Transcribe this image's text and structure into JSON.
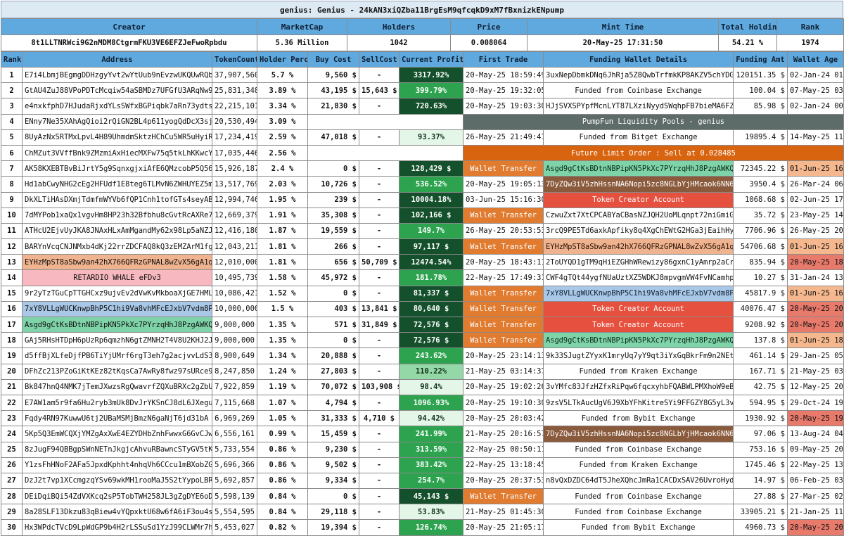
{
  "title": "genius: Genius - 24kAN3xiQZba11BrgEsM9qfcqkD9xM7fBxnizkENpump",
  "summary": {
    "headers": [
      "Creator",
      "MarketCap",
      "Holders",
      "Price",
      "Mint Time",
      "Total Holding",
      "Rank"
    ],
    "values": [
      "8t1LLTNRWci9G2nMDM8CtgrmFKU3VE6EFZJeFwoRpbdu",
      "5.36 Million",
      "1042",
      "0.008064",
      "20-May-25 17:31:50",
      "54.21 %",
      "1974"
    ]
  },
  "columns": [
    "Rank",
    "Address",
    "TokenCount",
    "Holder Perc",
    "Buy Cost",
    "SellCost",
    "Current Profit",
    "First Trade",
    "Funding Wallet Details",
    "Funding Amt",
    "Wallet Age"
  ],
  "colors": {
    "header_blue": "#5fa9de",
    "profit_dark": "#14502c",
    "profit_mid": "#2ea34f",
    "profit_light": "#93d8a6",
    "wallet_transfer": "#e07b30",
    "token_creator": "#e6503e",
    "pool_gray": "#5d6b69",
    "limit_orange": "#d9640f",
    "age_red": "#e87a6c",
    "age_orange": "#f5b88e"
  },
  "rows": [
    {
      "rank": "1",
      "address": "E7i4LbmjBEgmgDDHzgyYvt2wYtUub9nEvzwUKQUwRQbr",
      "addr_style": "",
      "token_count": "37,907,560",
      "holder_perc": "5.7 %",
      "buy_cost": "9,560 $",
      "sell_cost": "-",
      "profit": "3317.92%",
      "profit_level": "p-dark",
      "first_trade": "20-May-25 18:59:49",
      "funding": "3uxNepDbmkDNq6JhRja5Z8QwbTrfmkKP8AKZV5chYDGG",
      "funding_style": "f-plain",
      "funding_amt": "120151.35 $",
      "wallet_age": "02-Jan-24 01:17",
      "age_style": ""
    },
    {
      "rank": "2",
      "address": "GtAU4ZuJ88VPoPDTcMcqiw54aSBMDz7UFGfU3ARqNw96",
      "addr_style": "",
      "token_count": "25,831,348",
      "holder_perc": "3.89 %",
      "buy_cost": "43,195 $",
      "sell_cost": "15,643 $",
      "profit": "399.79%",
      "profit_level": "p-mid",
      "first_trade": "20-May-25 19:32:05",
      "funding": "Funded from Coinbase Exchange",
      "funding_style": "f-plain",
      "funding_amt": "100.04 $",
      "wallet_age": "07-May-25 03:04",
      "age_style": ""
    },
    {
      "rank": "3",
      "address": "e4nxkfphD7HJudaRjxdYLsSWfxBGPiqbk7aRn73ydts",
      "addr_style": "",
      "token_count": "22,215,101",
      "holder_perc": "3.34 %",
      "buy_cost": "21,830 $",
      "sell_cost": "-",
      "profit": "720.63%",
      "profit_level": "p-dark",
      "first_trade": "20-May-25 19:03:30",
      "funding": "HJjSVXSPYpfMcnLYT87LXziNyydSWqhpFB7bieMA6FZS",
      "funding_style": "f-plain",
      "funding_amt": "85.98 $",
      "wallet_age": "02-Jan-24 00:30",
      "age_style": ""
    },
    {
      "rank": "4",
      "address": "ENny7Ne35XAhAgQioi2rQiGN2BL4p611yogQdDcX3sjH",
      "addr_style": "",
      "token_count": "20,530,494",
      "holder_perc": "3.09 %",
      "buy_cost": "",
      "sell_cost": "",
      "profit": "",
      "profit_level": "p-none",
      "first_trade": "",
      "funding": "PumpFun Liquidity Pools - genius",
      "funding_style": "f-pool",
      "funding_amt": "",
      "wallet_age": "",
      "age_style": "",
      "span": "pool"
    },
    {
      "rank": "5",
      "address": "8UyAzNxSRTMxLpvL4H89UhmdmSktzHChCu5WR5uHyiRB",
      "addr_style": "",
      "token_count": "17,234,419",
      "holder_perc": "2.59 %",
      "buy_cost": "47,018 $",
      "sell_cost": "-",
      "profit": "93.37%",
      "profit_level": "p-pale",
      "first_trade": "26-May-25 21:49:47",
      "funding": "Funded from Bitget Exchange",
      "funding_style": "f-plain",
      "funding_amt": "19895.4 $",
      "wallet_age": "14-May-25 11:22",
      "age_style": ""
    },
    {
      "rank": "6",
      "address": "ChMZut3VVffBnk9ZMzmiAxHiecMXFw75q5tkLhKKwcYz",
      "addr_style": "",
      "token_count": "17,035,446",
      "holder_perc": "2.56 %",
      "buy_cost": "",
      "sell_cost": "",
      "profit": "",
      "profit_level": "p-none",
      "first_trade": "",
      "funding": "Future Limit Order : Sell at 0.028485",
      "funding_style": "f-limit",
      "funding_amt": "",
      "wallet_age": "",
      "age_style": "",
      "span": "limit"
    },
    {
      "rank": "7",
      "address": "AK58KXEBTBvBiJrtY5g9SqnxgjxiAfE6QMzcobP5Q56U",
      "addr_style": "",
      "token_count": "15,926,187",
      "holder_perc": "2.4 %",
      "buy_cost": "0 $",
      "sell_cost": "-",
      "profit": "128,429 $",
      "profit_level": "p-dark",
      "first_trade": "Wallet Transfer",
      "first_style": "f-transfer",
      "funding": "Asgd9gCtKsBDtnNBPipKN5PkXc7PYrzqHhJ8PzgAWKQJ",
      "funding_style": "f-green",
      "funding_amt": "72345.22 $",
      "wallet_age": "01-Jun-25 16:14",
      "age_style": "g-orange"
    },
    {
      "rank": "8",
      "address": "Hd1abCwyNHG2cEg2HFUdf1E8teg6TLMvN6ZWHUYEZ5m",
      "addr_style": "",
      "token_count": "13,517,769",
      "holder_perc": "2.03 %",
      "buy_cost": "10,726 $",
      "sell_cost": "-",
      "profit": "536.52%",
      "profit_level": "p-mid",
      "first_trade": "20-May-25 19:05:13",
      "funding": "7DyZQw3iV5zhHssnNA6Nopi5zc8NGLbYjHMcaok6NN66",
      "funding_style": "f-brown",
      "funding_amt": "3950.4 $",
      "wallet_age": "26-Mar-24 06:51",
      "age_style": ""
    },
    {
      "rank": "9",
      "address": "DkXLTiHAsDXmjTdmfmWYVb6fQP1Cnh1tofGTs4seyABq",
      "addr_style": "",
      "token_count": "12,994,746",
      "holder_perc": "1.95 %",
      "buy_cost": "239 $",
      "sell_cost": "-",
      "profit": "10004.18%",
      "profit_level": "p-dark",
      "first_trade": "03-Jun-25 15:16:30",
      "funding": "Token Creator Account",
      "funding_style": "f-creator",
      "funding_amt": "1068.68 $",
      "wallet_age": "02-Jun-25 17:20",
      "age_style": ""
    },
    {
      "rank": "10",
      "address": "7dMYPob1xaQx1vgvHm8HP23h32Bfbhu8cGvtRcAXRe7D",
      "addr_style": "",
      "token_count": "12,669,379",
      "holder_perc": "1.91 %",
      "buy_cost": "35,308 $",
      "sell_cost": "-",
      "profit": "102,166 $",
      "profit_level": "p-dark",
      "first_trade": "Wallet Transfer",
      "first_style": "f-transfer",
      "funding": "CzwuZxt7XtCPCABYaCBasNZJQH2UoMLqnpt72niGmiGN",
      "funding_style": "f-plain",
      "funding_amt": "35.72 $",
      "wallet_age": "23-May-25 14:45",
      "age_style": ""
    },
    {
      "rank": "11",
      "address": "ATHcU2EjvUyJKA8JNAxHLxAmMgandMy62x98Lp5aNZJ7",
      "addr_style": "",
      "token_count": "12,416,180",
      "holder_perc": "1.87 %",
      "buy_cost": "19,559 $",
      "sell_cost": "-",
      "profit": "149.7%",
      "profit_level": "p-mid",
      "first_trade": "26-May-25 20:53:53",
      "funding": "3rcQ9PE5Td6axkApfiky8q4XgChEWtG2HGa3jEaihHy9",
      "funding_style": "f-plain",
      "funding_amt": "7706.96 $",
      "wallet_age": "26-May-25 20:45",
      "age_style": ""
    },
    {
      "rank": "12",
      "address": "BARYnVcqCNJNMxb4dKj22rrZDCFAQ8kQ3zEMZArM1fg1",
      "addr_style": "",
      "token_count": "12,043,211",
      "holder_perc": "1.81 %",
      "buy_cost": "266 $",
      "sell_cost": "-",
      "profit": "97,117 $",
      "profit_level": "p-dark",
      "first_trade": "Wallet Transfer",
      "first_style": "f-transfer",
      "funding": "EYHzMpST8aSbw9an42hX766QFRzGPNAL8wZvX56gA1qd",
      "funding_style": "f-salmon",
      "funding_amt": "54706.68 $",
      "wallet_age": "01-Jun-25 16:13",
      "age_style": "g-orange"
    },
    {
      "rank": "13",
      "address": "EYHzMpST8aSbw9an42hX766QFRzGPNAL8wZvX56gA1qd",
      "addr_style": "a-salmon",
      "token_count": "12,010,000",
      "holder_perc": "1.81 %",
      "buy_cost": "656 $",
      "sell_cost": "50,709 $",
      "profit": "12474.54%",
      "profit_level": "p-dark",
      "first_trade": "20-May-25 18:43:11",
      "funding": "2ToUYQD1gTM9qHiEZGHhWRewizy86gxnC1yAmrp2aCrv",
      "funding_style": "f-plain",
      "funding_amt": "835.94 $",
      "wallet_age": "20-May-25 18:41",
      "age_style": "g-red"
    },
    {
      "rank": "14",
      "address": "RETARDIO WHALE eFDv3",
      "addr_style": "a-pink",
      "token_count": "10,495,739",
      "holder_perc": "1.58 %",
      "buy_cost": "45,972 $",
      "sell_cost": "-",
      "profit": "181.78%",
      "profit_level": "p-mid",
      "first_trade": "22-May-25 17:49:31",
      "funding": "CWF4gTQt44ygfNUaUztXZ5WDKJ8mpvgmVW4FvNCamhp6",
      "funding_style": "f-plain",
      "funding_amt": "10.27 $",
      "wallet_age": "31-Jan-24 13:16",
      "age_style": ""
    },
    {
      "rank": "15",
      "address": "9r2yTzTGuCpTTGHCxz9ujvEv2dVwKvMkboaXjGE7HMLD",
      "addr_style": "",
      "token_count": "10,086,421",
      "holder_perc": "1.52 %",
      "buy_cost": "0 $",
      "sell_cost": "-",
      "profit": "81,337 $",
      "profit_level": "p-dark",
      "first_trade": "Wallet Transfer",
      "first_style": "f-transfer",
      "funding": "7xY8VLLgWUCKnwpBhP5C1hi9Va8vhMFcEJxbV7vdm8PL",
      "funding_style": "f-blue",
      "funding_amt": "45817.9 $",
      "wallet_age": "01-Jun-25 16:16",
      "age_style": "g-orange"
    },
    {
      "rank": "16",
      "address": "7xY8VLLgWUCKnwpBhP5C1hi9Va8vhMFcEJxbV7vdm8PL",
      "addr_style": "a-blue",
      "token_count": "10,000,000",
      "holder_perc": "1.5 %",
      "buy_cost": "403 $",
      "sell_cost": "13,841 $",
      "profit": "80,640 $",
      "profit_level": "p-dark",
      "first_trade": "Wallet Transfer",
      "first_style": "f-transfer",
      "funding": "Token Creator Account",
      "funding_style": "f-creator",
      "funding_amt": "40076.47 $",
      "wallet_age": "20-May-25 20:51",
      "age_style": "g-red"
    },
    {
      "rank": "17",
      "address": "Asgd9gCtKsBDtnNBPipKN5PkXc7PYrzqHhJ8PzgAWKQJ",
      "addr_style": "a-green",
      "token_count": "9,000,000",
      "holder_perc": "1.35 %",
      "buy_cost": "571 $",
      "sell_cost": "31,849 $",
      "profit": "72,576 $",
      "profit_level": "p-dark",
      "first_trade": "Wallet Transfer",
      "first_style": "f-transfer",
      "funding": "Token Creator Account",
      "funding_style": "f-creator",
      "funding_amt": "9208.92 $",
      "wallet_age": "20-May-25 20:06",
      "age_style": "g-red"
    },
    {
      "rank": "18",
      "address": "GAj5RHsHTDpH6pUzRp6qmzhN6gtZMNH2T4V8U2KHJ2Jf",
      "addr_style": "",
      "token_count": "9,000,000",
      "holder_perc": "1.35 %",
      "buy_cost": "0 $",
      "sell_cost": "-",
      "profit": "72,576 $",
      "profit_level": "p-dark",
      "first_trade": "Wallet Transfer",
      "first_style": "f-transfer",
      "funding": "Asgd9gCtKsBDtnNBPipKN5PkXc7PYrzqHhJ8PzgAWKQJ",
      "funding_style": "f-green",
      "funding_amt": "137.8 $",
      "wallet_age": "01-Jun-25 18:42",
      "age_style": "g-orange"
    },
    {
      "rank": "19",
      "address": "d5ffBjXLfeDjfPB6TiYjUMrf6rgT3eh7g2acjvvLdS3",
      "addr_style": "",
      "token_count": "8,900,649",
      "holder_perc": "1.34 %",
      "buy_cost": "20,888 $",
      "sell_cost": "-",
      "profit": "243.62%",
      "profit_level": "p-mid",
      "first_trade": "20-May-25 23:14:13",
      "funding": "9k33SJugtZYyxK1mryUq7yY9qt3iYxGqBkrFm9n2NEtk",
      "funding_style": "f-plain",
      "funding_amt": "461.14 $",
      "wallet_age": "29-Jan-25 05:41",
      "age_style": ""
    },
    {
      "rank": "20",
      "address": "DFhZc213PZoGiKtKEz82tKqsCa7AwRy8fwz97sURce9d",
      "addr_style": "",
      "token_count": "8,247,850",
      "holder_perc": "1.24 %",
      "buy_cost": "27,803 $",
      "sell_cost": "-",
      "profit": "110.22%",
      "profit_level": "p-light",
      "first_trade": "21-May-25 03:14:37",
      "funding": "Funded from Kraken Exchange",
      "funding_style": "f-plain",
      "funding_amt": "167.71 $",
      "wallet_age": "21-May-25 03:10",
      "age_style": ""
    },
    {
      "rank": "21",
      "address": "Bk847hnQ4NMK7jTemJXwzsRgQwavrfZQXuBRXc2gZbUs",
      "addr_style": "",
      "token_count": "7,922,859",
      "holder_perc": "1.19 %",
      "buy_cost": "70,072 $",
      "sell_cost": "103,908 $",
      "profit": "98.4%",
      "profit_level": "p-pale",
      "first_trade": "20-May-25 19:02:26",
      "funding": "3vYMfc83JfzHZfxRiPqw6fqcxyhbFQABWLPMXhoW9eB8",
      "funding_style": "f-plain",
      "funding_amt": "42.75 $",
      "wallet_age": "12-May-25 20:57",
      "age_style": ""
    },
    {
      "rank": "22",
      "address": "E7AW1am5r9fa6Hu2ryb3mUk8DvJrYKSnCJ8dL6JXeguY",
      "addr_style": "",
      "token_count": "7,115,668",
      "holder_perc": "1.07 %",
      "buy_cost": "4,794 $",
      "sell_cost": "-",
      "profit": "1096.93%",
      "profit_level": "p-mid",
      "first_trade": "20-May-25 19:10:30",
      "funding": "9zsV5LTkAucUgV6J9XbYFhKitreSYi9FFGZY8G5yL3vV",
      "funding_style": "f-plain",
      "funding_amt": "594.95 $",
      "wallet_age": "29-Oct-24 19:23",
      "age_style": ""
    },
    {
      "rank": "23",
      "address": "Fqdy4RN97KuwwU6tj2UBaMSMjBmzN6gaNjT6jd31bA",
      "addr_style": "",
      "token_count": "6,969,269",
      "holder_perc": "1.05 %",
      "buy_cost": "31,333 $",
      "sell_cost": "4,710 $",
      "profit": "94.42%",
      "profit_level": "p-pale",
      "first_trade": "20-May-25 20:03:42",
      "funding": "Funded from Bybit Exchange",
      "funding_style": "f-plain",
      "funding_amt": "1930.92 $",
      "wallet_age": "20-May-25 19:44",
      "age_style": "g-red"
    },
    {
      "rank": "24",
      "address": "5Kp5Q3EmWCQXjYMZgAxXwE4EZYDHbZnhFwwxG6GvCJwe",
      "addr_style": "",
      "token_count": "6,556,161",
      "holder_perc": "0.99 %",
      "buy_cost": "15,459 $",
      "sell_cost": "-",
      "profit": "241.99%",
      "profit_level": "p-mid",
      "first_trade": "21-May-25 20:16:57",
      "funding": "7DyZQw3iV5zhHssnNA6Nopi5zc8NGLbYjHMcaok6NN66",
      "funding_style": "f-brown",
      "funding_amt": "97.06 $",
      "wallet_age": "13-Aug-24 04:25",
      "age_style": ""
    },
    {
      "rank": "25",
      "address": "8zJugF94QBBgpSWnNETnJkgjcAhvuRBawncSTyGV5tKS",
      "addr_style": "",
      "token_count": "5,733,554",
      "holder_perc": "0.86 %",
      "buy_cost": "9,230 $",
      "sell_cost": "-",
      "profit": "313.59%",
      "profit_level": "p-mid",
      "first_trade": "22-May-25 00:50:11",
      "funding": "Funded from Coinbase Exchange",
      "funding_style": "f-plain",
      "funding_amt": "753.16 $",
      "wallet_age": "09-May-25 20:58",
      "age_style": ""
    },
    {
      "rank": "26",
      "address": "Y1zsFhHNoF2AFa5JpxdKphht4nhqVh6CCcu1mBXobZG",
      "addr_style": "",
      "token_count": "5,696,366",
      "holder_perc": "0.86 %",
      "buy_cost": "9,502 $",
      "sell_cost": "-",
      "profit": "383.42%",
      "profit_level": "p-mid",
      "first_trade": "22-May-25 13:18:45",
      "funding": "Funded from Kraken Exchange",
      "funding_style": "f-plain",
      "funding_amt": "1745.46 $",
      "wallet_age": "22-May-25 13:14",
      "age_style": ""
    },
    {
      "rank": "27",
      "address": "DzJ2t7vp1XCcmgzqYSv69wkMH1rooMaJ5S2tYypoLBRRc",
      "addr_style": "",
      "token_count": "5,692,857",
      "holder_perc": "0.86 %",
      "buy_cost": "9,334 $",
      "sell_cost": "-",
      "profit": "254.7%",
      "profit_level": "p-mid",
      "first_trade": "20-May-25 20:37:53",
      "funding": "n8vQxDZDC64dT5JheXQhcJmRa1CACDxSAV26UvroHyd",
      "funding_style": "f-plain",
      "funding_amt": "14.97 $",
      "wallet_age": "06-Feb-25 03:46",
      "age_style": ""
    },
    {
      "rank": "28",
      "address": "DEiDqiBQi54ZdVXKcq2sP5TobTWH258JL3gZgDYE6oD",
      "addr_style": "",
      "token_count": "5,598,139",
      "holder_perc": "0.84 %",
      "buy_cost": "0 $",
      "sell_cost": "-",
      "profit": "45,143 $",
      "profit_level": "p-dark",
      "first_trade": "Wallet Transfer",
      "first_style": "f-transfer",
      "funding": "Funded from Coinbase Exchange",
      "funding_style": "f-plain",
      "funding_amt": "27.88 $",
      "wallet_age": "27-Mar-25 02:37",
      "age_style": ""
    },
    {
      "rank": "29",
      "address": "8a28SLF13Dkzu83qBiew4vYQpxktU68w6fA6iF3ou4sk",
      "addr_style": "",
      "token_count": "5,554,595",
      "holder_perc": "0.84 %",
      "buy_cost": "29,118 $",
      "sell_cost": "-",
      "profit": "53.83%",
      "profit_level": "p-pale",
      "first_trade": "21-May-25 01:45:30",
      "funding": "Funded from Coinbase Exchange",
      "funding_style": "f-plain",
      "funding_amt": "33905.21 $",
      "wallet_age": "21-Jan-25 11:43",
      "age_style": ""
    },
    {
      "rank": "30",
      "address": "Hx3WPdcTVcD9LpWdGP9b4H2rLSSuSd1YzJ99CLWMr7hR",
      "addr_style": "",
      "token_count": "5,453,027",
      "holder_perc": "0.82 %",
      "buy_cost": "19,394 $",
      "sell_cost": "-",
      "profit": "126.74%",
      "profit_level": "p-mid",
      "first_trade": "20-May-25 21:05:17",
      "funding": "Funded from Bybit Exchange",
      "funding_style": "f-plain",
      "funding_amt": "4960.73 $",
      "wallet_age": "20-May-25 20:59",
      "age_style": "g-red"
    }
  ]
}
